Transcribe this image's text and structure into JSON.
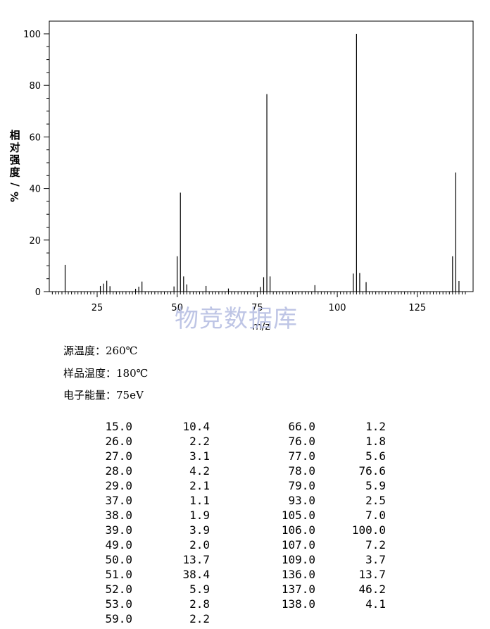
{
  "chart_data": {
    "type": "bar",
    "xlabel": "m/z",
    "ylabel": "相对强度/%",
    "xlim": [
      10,
      140
    ],
    "ylim": [
      0,
      100
    ],
    "x_ticks": [
      25,
      50,
      75,
      100,
      125
    ],
    "y_ticks": [
      0,
      20,
      40,
      60,
      80,
      100
    ],
    "x_tick_labels": [
      "25",
      "50",
      "75",
      "100",
      "125"
    ],
    "y_tick_labels": [
      "0",
      "20",
      "40",
      "60",
      "80",
      "100"
    ],
    "grid": false,
    "peaks": [
      {
        "mz": 15,
        "intensity": 10.4
      },
      {
        "mz": 26,
        "intensity": 2.2
      },
      {
        "mz": 27,
        "intensity": 3.1
      },
      {
        "mz": 28,
        "intensity": 4.2
      },
      {
        "mz": 29,
        "intensity": 2.1
      },
      {
        "mz": 37,
        "intensity": 1.1
      },
      {
        "mz": 38,
        "intensity": 1.9
      },
      {
        "mz": 39,
        "intensity": 3.9
      },
      {
        "mz": 49,
        "intensity": 2.0
      },
      {
        "mz": 50,
        "intensity": 13.7
      },
      {
        "mz": 51,
        "intensity": 38.4
      },
      {
        "mz": 52,
        "intensity": 5.9
      },
      {
        "mz": 53,
        "intensity": 2.8
      },
      {
        "mz": 59,
        "intensity": 2.2
      },
      {
        "mz": 66,
        "intensity": 1.2
      },
      {
        "mz": 76,
        "intensity": 1.8
      },
      {
        "mz": 77,
        "intensity": 5.6
      },
      {
        "mz": 78,
        "intensity": 76.6
      },
      {
        "mz": 79,
        "intensity": 5.9
      },
      {
        "mz": 93,
        "intensity": 2.5
      },
      {
        "mz": 105,
        "intensity": 7.0
      },
      {
        "mz": 106,
        "intensity": 100.0
      },
      {
        "mz": 107,
        "intensity": 7.2
      },
      {
        "mz": 109,
        "intensity": 3.7
      },
      {
        "mz": 136,
        "intensity": 13.7
      },
      {
        "mz": 137,
        "intensity": 46.2
      },
      {
        "mz": 138,
        "intensity": 4.1
      }
    ]
  },
  "watermark": "物竞数据库",
  "conditions": {
    "source_temp": "源温度：260℃",
    "sample_temp": "样品温度：180℃",
    "electron_energy": "电子能量：75eV"
  },
  "peak_table": {
    "left": [
      [
        "15.0",
        "10.4"
      ],
      [
        "26.0",
        "2.2"
      ],
      [
        "27.0",
        "3.1"
      ],
      [
        "28.0",
        "4.2"
      ],
      [
        "29.0",
        "2.1"
      ],
      [
        "37.0",
        "1.1"
      ],
      [
        "38.0",
        "1.9"
      ],
      [
        "39.0",
        "3.9"
      ],
      [
        "49.0",
        "2.0"
      ],
      [
        "50.0",
        "13.7"
      ],
      [
        "51.0",
        "38.4"
      ],
      [
        "52.0",
        "5.9"
      ],
      [
        "53.0",
        "2.8"
      ],
      [
        "59.0",
        "2.2"
      ]
    ],
    "right": [
      [
        "66.0",
        "1.2"
      ],
      [
        "76.0",
        "1.8"
      ],
      [
        "77.0",
        "5.6"
      ],
      [
        "78.0",
        "76.6"
      ],
      [
        "79.0",
        "5.9"
      ],
      [
        "93.0",
        "2.5"
      ],
      [
        "105.0",
        "7.0"
      ],
      [
        "106.0",
        "100.0"
      ],
      [
        "107.0",
        "7.2"
      ],
      [
        "109.0",
        "3.7"
      ],
      [
        "136.0",
        "13.7"
      ],
      [
        "137.0",
        "46.2"
      ],
      [
        "138.0",
        "4.1"
      ]
    ]
  }
}
